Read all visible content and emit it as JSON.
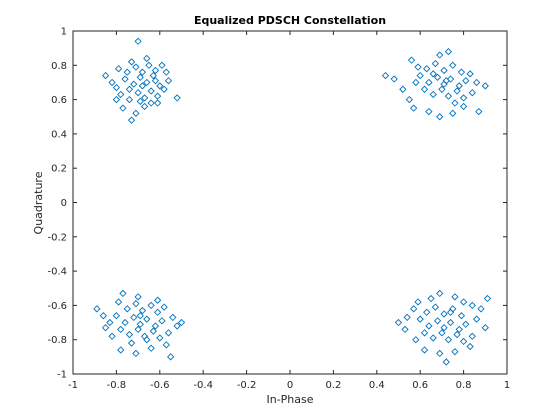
{
  "chart_data": {
    "type": "scatter",
    "title": "Equalized PDSCH Constellation",
    "xlabel": "In-Phase",
    "ylabel": "Quadrature",
    "xlim": [
      -1,
      1
    ],
    "ylim": [
      -1,
      1
    ],
    "xticks": [
      "-1",
      "-0.8",
      "-0.6",
      "-0.4",
      "-0.2",
      "0",
      "0.2",
      "0.4",
      "0.6",
      "0.8",
      "1"
    ],
    "yticks": [
      "-1",
      "-0.8",
      "-0.6",
      "-0.4",
      "-0.2",
      "0",
      "0.2",
      "0.4",
      "0.6",
      "0.8",
      "1"
    ],
    "grid": false,
    "marker": "diamond",
    "marker_color": "#0072BD",
    "series": [
      {
        "clusters": [
          {
            "center": [
              -0.707,
              0.707
            ],
            "points": [
              [
                -0.8,
                0.67
              ],
              [
                -0.76,
                0.72
              ],
              [
                -0.72,
                0.69
              ],
              [
                -0.69,
                0.73
              ],
              [
                -0.66,
                0.7
              ],
              [
                -0.63,
                0.74
              ],
              [
                -0.6,
                0.68
              ],
              [
                -0.78,
                0.63
              ],
              [
                -0.74,
                0.6
              ],
              [
                -0.7,
                0.64
              ],
              [
                -0.67,
                0.61
              ],
              [
                -0.64,
                0.65
              ],
              [
                -0.61,
                0.62
              ],
              [
                -0.58,
                0.66
              ],
              [
                -0.75,
                0.76
              ],
              [
                -0.71,
                0.79
              ],
              [
                -0.68,
                0.76
              ],
              [
                -0.65,
                0.8
              ],
              [
                -0.62,
                0.77
              ],
              [
                -0.7,
                0.94
              ],
              [
                -0.73,
                0.82
              ],
              [
                -0.66,
                0.84
              ],
              [
                -0.59,
                0.8
              ],
              [
                -0.56,
                0.71
              ],
              [
                -0.82,
                0.7
              ],
              [
                -0.77,
                0.55
              ],
              [
                -0.71,
                0.52
              ],
              [
                -0.67,
                0.56
              ],
              [
                -0.73,
                0.48
              ],
              [
                -0.64,
                0.58
              ],
              [
                -0.52,
                0.61
              ],
              [
                -0.85,
                0.74
              ],
              [
                -0.79,
                0.78
              ],
              [
                -0.61,
                0.58
              ],
              [
                -0.68,
                0.68
              ],
              [
                -0.74,
                0.66
              ],
              [
                -0.62,
                0.71
              ],
              [
                -0.69,
                0.59
              ],
              [
                -0.57,
                0.76
              ],
              [
                -0.8,
                0.6
              ]
            ]
          },
          {
            "center": [
              0.707,
              0.707
            ],
            "points": [
              [
                0.6,
                0.74
              ],
              [
                0.64,
                0.7
              ],
              [
                0.68,
                0.73
              ],
              [
                0.71,
                0.69
              ],
              [
                0.74,
                0.72
              ],
              [
                0.78,
                0.68
              ],
              [
                0.81,
                0.71
              ],
              [
                0.62,
                0.66
              ],
              [
                0.66,
                0.63
              ],
              [
                0.7,
                0.66
              ],
              [
                0.73,
                0.62
              ],
              [
                0.77,
                0.65
              ],
              [
                0.8,
                0.61
              ],
              [
                0.84,
                0.64
              ],
              [
                0.63,
                0.78
              ],
              [
                0.67,
                0.81
              ],
              [
                0.71,
                0.77
              ],
              [
                0.75,
                0.8
              ],
              [
                0.79,
                0.76
              ],
              [
                0.56,
                0.83
              ],
              [
                0.59,
                0.79
              ],
              [
                0.83,
                0.75
              ],
              [
                0.86,
                0.7
              ],
              [
                0.44,
                0.74
              ],
              [
                0.48,
                0.72
              ],
              [
                0.52,
                0.66
              ],
              [
                0.55,
                0.6
              ],
              [
                0.57,
                0.55
              ],
              [
                0.64,
                0.53
              ],
              [
                0.69,
                0.5
              ],
              [
                0.75,
                0.52
              ],
              [
                0.8,
                0.56
              ],
              [
                0.87,
                0.53
              ],
              [
                0.9,
                0.68
              ],
              [
                0.69,
                0.86
              ],
              [
                0.73,
                0.88
              ],
              [
                0.58,
                0.7
              ],
              [
                0.76,
                0.58
              ],
              [
                0.66,
                0.75
              ],
              [
                0.72,
                0.71
              ]
            ]
          },
          {
            "center": [
              -0.707,
              -0.707
            ],
            "points": [
              [
                -0.8,
                -0.66
              ],
              [
                -0.76,
                -0.7
              ],
              [
                -0.72,
                -0.67
              ],
              [
                -0.69,
                -0.71
              ],
              [
                -0.66,
                -0.68
              ],
              [
                -0.62,
                -0.72
              ],
              [
                -0.59,
                -0.69
              ],
              [
                -0.78,
                -0.74
              ],
              [
                -0.74,
                -0.77
              ],
              [
                -0.7,
                -0.74
              ],
              [
                -0.67,
                -0.78
              ],
              [
                -0.63,
                -0.75
              ],
              [
                -0.6,
                -0.79
              ],
              [
                -0.56,
                -0.76
              ],
              [
                -0.75,
                -0.62
              ],
              [
                -0.71,
                -0.59
              ],
              [
                -0.68,
                -0.63
              ],
              [
                -0.64,
                -0.6
              ],
              [
                -0.61,
                -0.64
              ],
              [
                -0.89,
                -0.62
              ],
              [
                -0.86,
                -0.66
              ],
              [
                -0.83,
                -0.7
              ],
              [
                -0.79,
                -0.58
              ],
              [
                -0.77,
                -0.53
              ],
              [
                -0.7,
                -0.55
              ],
              [
                -0.54,
                -0.67
              ],
              [
                -0.52,
                -0.72
              ],
              [
                -0.5,
                -0.7
              ],
              [
                -0.57,
                -0.83
              ],
              [
                -0.64,
                -0.85
              ],
              [
                -0.71,
                -0.88
              ],
              [
                -0.78,
                -0.86
              ],
              [
                -0.55,
                -0.9
              ],
              [
                -0.82,
                -0.78
              ],
              [
                -0.73,
                -0.82
              ],
              [
                -0.66,
                -0.8
              ],
              [
                -0.61,
                -0.57
              ],
              [
                -0.58,
                -0.61
              ],
              [
                -0.85,
                -0.73
              ],
              [
                -0.69,
                -0.66
              ]
            ]
          },
          {
            "center": [
              0.707,
              -0.707
            ],
            "points": [
              [
                0.6,
                -0.68
              ],
              [
                0.64,
                -0.72
              ],
              [
                0.68,
                -0.69
              ],
              [
                0.71,
                -0.73
              ],
              [
                0.74,
                -0.7
              ],
              [
                0.78,
                -0.74
              ],
              [
                0.81,
                -0.71
              ],
              [
                0.62,
                -0.76
              ],
              [
                0.66,
                -0.79
              ],
              [
                0.7,
                -0.76
              ],
              [
                0.73,
                -0.8
              ],
              [
                0.77,
                -0.77
              ],
              [
                0.8,
                -0.81
              ],
              [
                0.84,
                -0.78
              ],
              [
                0.63,
                -0.64
              ],
              [
                0.67,
                -0.61
              ],
              [
                0.71,
                -0.65
              ],
              [
                0.75,
                -0.62
              ],
              [
                0.79,
                -0.66
              ],
              [
                0.54,
                -0.67
              ],
              [
                0.5,
                -0.7
              ],
              [
                0.53,
                -0.74
              ],
              [
                0.57,
                -0.62
              ],
              [
                0.59,
                -0.58
              ],
              [
                0.65,
                -0.56
              ],
              [
                0.69,
                -0.53
              ],
              [
                0.76,
                -0.55
              ],
              [
                0.8,
                -0.58
              ],
              [
                0.84,
                -0.6
              ],
              [
                0.88,
                -0.62
              ],
              [
                0.91,
                -0.56
              ],
              [
                0.86,
                -0.68
              ],
              [
                0.9,
                -0.73
              ],
              [
                0.83,
                -0.84
              ],
              [
                0.76,
                -0.87
              ],
              [
                0.69,
                -0.88
              ],
              [
                0.62,
                -0.86
              ],
              [
                0.58,
                -0.8
              ],
              [
                0.72,
                -0.93
              ],
              [
                0.74,
                -0.64
              ]
            ]
          }
        ]
      }
    ]
  }
}
